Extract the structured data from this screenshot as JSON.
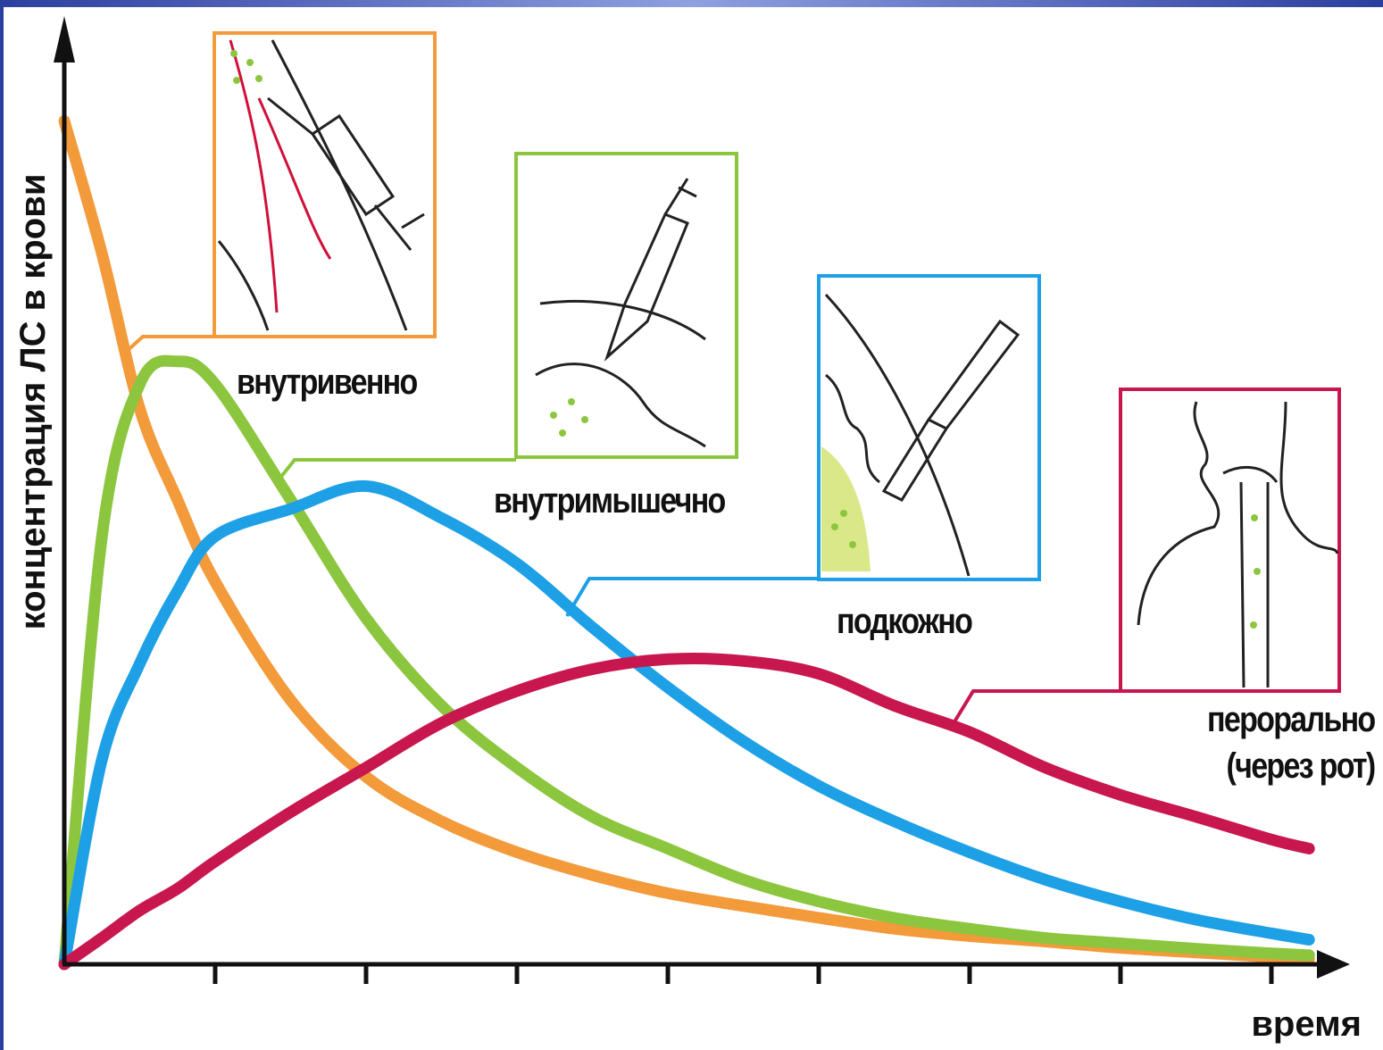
{
  "chart_data": {
    "type": "line",
    "y_label": "концентрация ЛС в крови",
    "x_label": "время",
    "x": [
      0,
      0.25,
      0.5,
      0.75,
      1,
      1.5,
      2,
      2.5,
      3,
      3.5,
      4,
      4.5,
      5,
      5.5,
      6,
      6.5,
      7,
      7.5,
      8,
      8.25
    ],
    "xlim": [
      0,
      8.5
    ],
    "xticks": [
      1,
      2,
      3,
      4,
      5,
      6,
      7,
      8
    ],
    "ylim": [
      0,
      100
    ],
    "series": [
      {
        "name": "внутривенно",
        "color": "#f39a3a",
        "values": [
          92.6,
          78,
          61,
          51,
          42,
          29,
          20.6,
          15.7,
          12.3,
          9.8,
          7.8,
          6.4,
          5.1,
          3.9,
          3.1,
          2.5,
          1.8,
          1.3,
          0.8,
          0.6
        ]
      },
      {
        "name": "внутримышечно",
        "color": "#8cc63f",
        "values": [
          0,
          47,
          63.7,
          66.2,
          63.7,
          51,
          38,
          28.4,
          21.6,
          16.2,
          12.7,
          9.3,
          6.9,
          5.1,
          3.9,
          2.9,
          2.3,
          1.7,
          1.2,
          1.0
        ]
      },
      {
        "name": "подкожно",
        "color": "#1ea0e6",
        "values": [
          0,
          22.5,
          33,
          41,
          47,
          50,
          52.5,
          49,
          44,
          37,
          30.4,
          24.5,
          19.6,
          15.7,
          12.3,
          9.3,
          6.9,
          4.9,
          3.4,
          2.7
        ]
      },
      {
        "name": "перорально (через рот)",
        "color": "#c8174f",
        "values": [
          0,
          2.9,
          5.9,
          8.3,
          11.3,
          16.7,
          21.6,
          26.5,
          30,
          32.4,
          33.5,
          33.3,
          31.9,
          28.4,
          25.5,
          21.6,
          18.6,
          16.2,
          13.7,
          12.7
        ]
      }
    ]
  }
}
